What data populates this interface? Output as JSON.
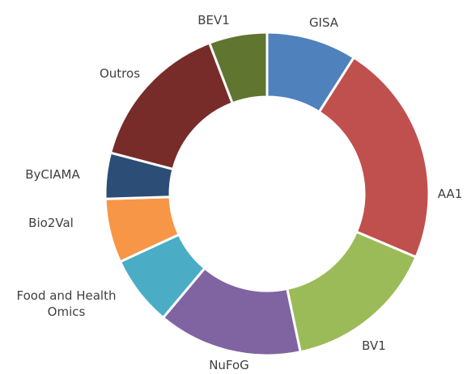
{
  "chart_data": {
    "type": "donut",
    "categories": [
      "GISA",
      "AA1",
      "BV1",
      "NuFoG",
      "Food and Health Omics",
      "Bio2Val",
      "ByCIAMA",
      "Outros",
      "BEV1"
    ],
    "values": [
      9.0,
      22.4,
      15.3,
      14.4,
      7.0,
      6.4,
      4.6,
      15.1,
      5.8
    ],
    "colors": [
      "#4f81bd",
      "#c0504d",
      "#9bbb59",
      "#8064a2",
      "#4bacc6",
      "#f79646",
      "#2c4d75",
      "#772c2a",
      "#5f7530"
    ]
  }
}
